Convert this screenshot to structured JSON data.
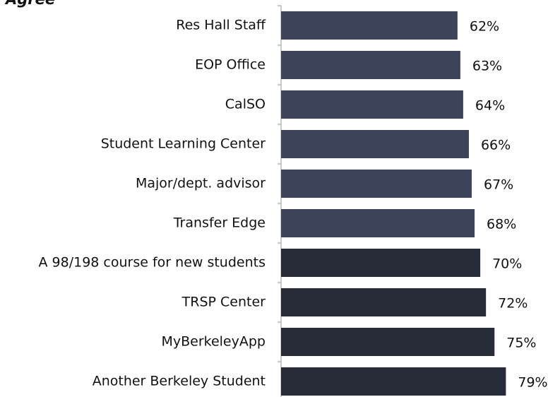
{
  "chart_data": {
    "type": "bar",
    "orientation": "horizontal",
    "title": "Agree",
    "categories": [
      "Res Hall Staff",
      "EOP Office",
      "CalSO",
      "Student Learning Center",
      "Major/dept. advisor",
      "Transfer Edge",
      "A 98/198 course for new students",
      "TRSP Center",
      "MyBerkeleyApp",
      "Another Berkeley Student"
    ],
    "values": [
      62,
      63,
      64,
      66,
      67,
      68,
      70,
      72,
      75,
      79
    ],
    "value_labels": [
      "62%",
      "63%",
      "64%",
      "66%",
      "67%",
      "68%",
      "70%",
      "72%",
      "75%",
      "79%"
    ],
    "colors": [
      "#3b4459",
      "#3b4459",
      "#3b4459",
      "#3b4459",
      "#3b4459",
      "#3b4459",
      "#272c38",
      "#272c38",
      "#272c38",
      "#272c38"
    ],
    "xlim": [
      0,
      100
    ]
  }
}
